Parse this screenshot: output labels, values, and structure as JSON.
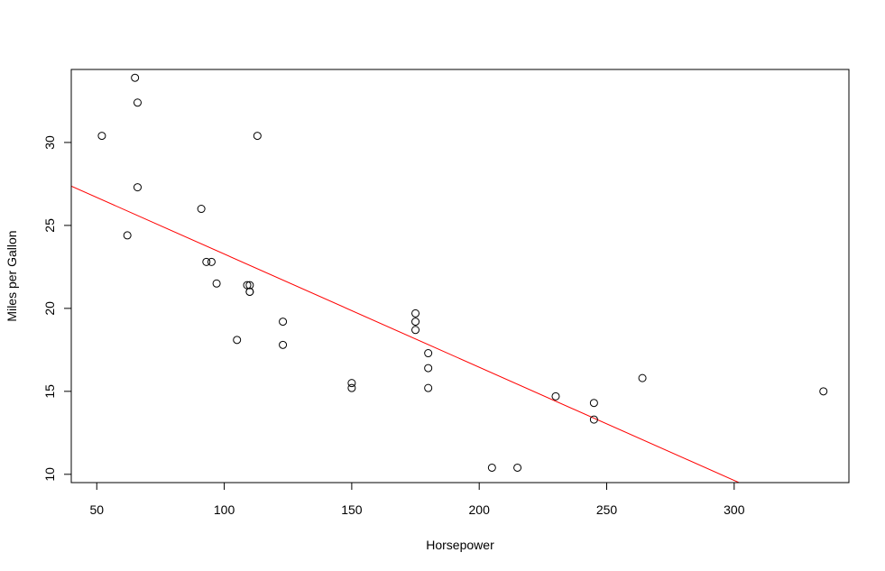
{
  "chart_data": {
    "type": "scatter",
    "title": "",
    "xlabel": "Horsepower",
    "ylabel": "Miles per Gallon",
    "xlim": [
      40,
      345
    ],
    "ylim": [
      9.5,
      34.4
    ],
    "x_ticks": [
      50,
      100,
      150,
      200,
      250,
      300
    ],
    "y_ticks": [
      10,
      15,
      20,
      25,
      30
    ],
    "grid": false,
    "legend": "none",
    "point_color": "#000000",
    "points": [
      {
        "x": 52,
        "y": 30.4
      },
      {
        "x": 62,
        "y": 24.4
      },
      {
        "x": 65,
        "y": 33.9
      },
      {
        "x": 66,
        "y": 32.4
      },
      {
        "x": 66,
        "y": 27.3
      },
      {
        "x": 91,
        "y": 26.0
      },
      {
        "x": 93,
        "y": 22.8
      },
      {
        "x": 95,
        "y": 22.8
      },
      {
        "x": 97,
        "y": 21.5
      },
      {
        "x": 105,
        "y": 18.1
      },
      {
        "x": 109,
        "y": 21.4
      },
      {
        "x": 110,
        "y": 21.4
      },
      {
        "x": 110,
        "y": 21.0
      },
      {
        "x": 110,
        "y": 21.0
      },
      {
        "x": 113,
        "y": 30.4
      },
      {
        "x": 123,
        "y": 19.2
      },
      {
        "x": 123,
        "y": 17.8
      },
      {
        "x": 150,
        "y": 15.5
      },
      {
        "x": 150,
        "y": 15.2
      },
      {
        "x": 175,
        "y": 19.7
      },
      {
        "x": 175,
        "y": 19.2
      },
      {
        "x": 175,
        "y": 18.7
      },
      {
        "x": 180,
        "y": 17.3
      },
      {
        "x": 180,
        "y": 16.4
      },
      {
        "x": 180,
        "y": 15.2
      },
      {
        "x": 205,
        "y": 10.4
      },
      {
        "x": 215,
        "y": 10.4
      },
      {
        "x": 230,
        "y": 14.7
      },
      {
        "x": 245,
        "y": 14.3
      },
      {
        "x": 245,
        "y": 13.3
      },
      {
        "x": 264,
        "y": 15.8
      },
      {
        "x": 335,
        "y": 15.0
      }
    ],
    "regression_line": {
      "color": "#ff0000",
      "intercept": 30.099,
      "slope": -0.06823
    }
  }
}
